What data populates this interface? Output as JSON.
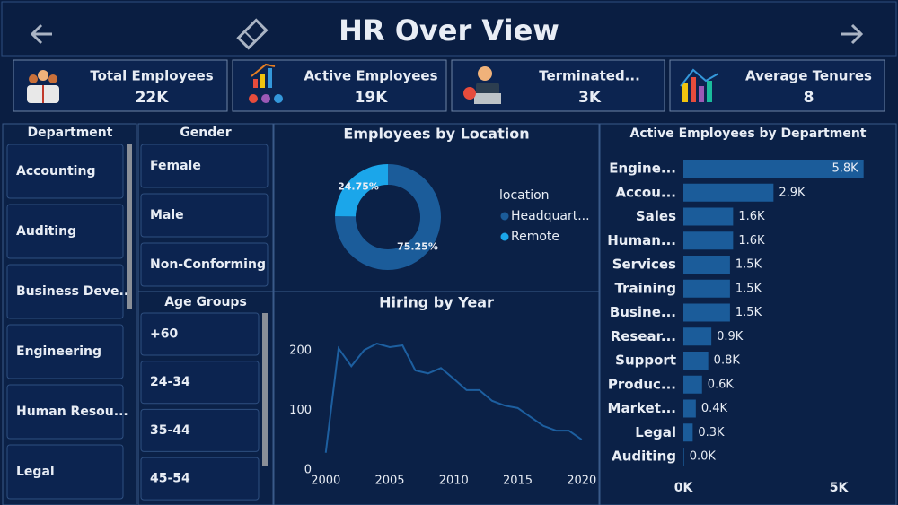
{
  "header": {
    "title": "HR Over View"
  },
  "kpis": [
    {
      "label": "Total Employees",
      "value": "22K"
    },
    {
      "label": "Active Employees",
      "value": "19K"
    },
    {
      "label": "Terminated...",
      "value": "3K"
    },
    {
      "label": "Average Tenures",
      "value": 8
    }
  ],
  "slicers": {
    "department": {
      "title": "Department",
      "items": [
        "Accounting",
        "Auditing",
        "Business Deve...",
        "Engineering",
        "Human Resou...",
        "Legal"
      ]
    },
    "gender": {
      "title": "Gender",
      "items": [
        "Female",
        "Male",
        "Non-Conforming"
      ]
    },
    "age_groups": {
      "title": "Age Groups",
      "items": [
        "+60",
        "24-34",
        "35-44",
        "45-54"
      ]
    }
  },
  "chart_data": [
    {
      "type": "donut",
      "title": "Employees by Location",
      "legend_title": "location",
      "categories": [
        "Headquart...",
        "Remote"
      ],
      "values": [
        75.25,
        24.75
      ],
      "value_labels": [
        "75.25%",
        "24.75%"
      ],
      "colors": [
        "#1b5c9a",
        "#1ba6ea"
      ]
    },
    {
      "type": "line",
      "title": "Hiring by Year",
      "color": "#1d5fa0",
      "x": [
        2000,
        2001,
        2002,
        2003,
        2004,
        2005,
        2006,
        2007,
        2008,
        2009,
        2010,
        2011,
        2012,
        2013,
        2014,
        2015,
        2016,
        2017,
        2018,
        2019,
        2020
      ],
      "values": [
        29,
        204,
        174,
        201,
        212,
        206,
        209,
        167,
        162,
        171,
        153,
        134,
        134,
        116,
        108,
        104,
        89,
        74,
        66,
        66,
        51
      ],
      "xlim": [
        1997,
        2021
      ],
      "xticks": [
        2000,
        2005,
        2010,
        2015,
        2020
      ],
      "ylim": [
        0,
        240
      ],
      "yticks": [
        0,
        100,
        200
      ]
    },
    {
      "type": "hbar",
      "title": "Active Employees by Department",
      "color": "#1b5c9a",
      "categories": [
        "Engine...",
        "Accou...",
        "Sales",
        "Human...",
        "Services",
        "Training",
        "Busine...",
        "Resear...",
        "Support",
        "Produc...",
        "Market...",
        "Legal",
        "Auditing"
      ],
      "values": [
        5800,
        2900,
        1600,
        1600,
        1500,
        1500,
        1500,
        900,
        800,
        600,
        400,
        300,
        20
      ],
      "value_labels": [
        "5.8K",
        "2.9K",
        "1.6K",
        "1.6K",
        "1.5K",
        "1.5K",
        "1.5K",
        "0.9K",
        "0.8K",
        "0.6K",
        "0.4K",
        "0.3K",
        "0.0K"
      ],
      "xlim": [
        0,
        6000
      ],
      "xticks": [
        {
          "value": 0,
          "label": "0K"
        },
        {
          "value": 5000,
          "label": "5K"
        }
      ]
    }
  ]
}
